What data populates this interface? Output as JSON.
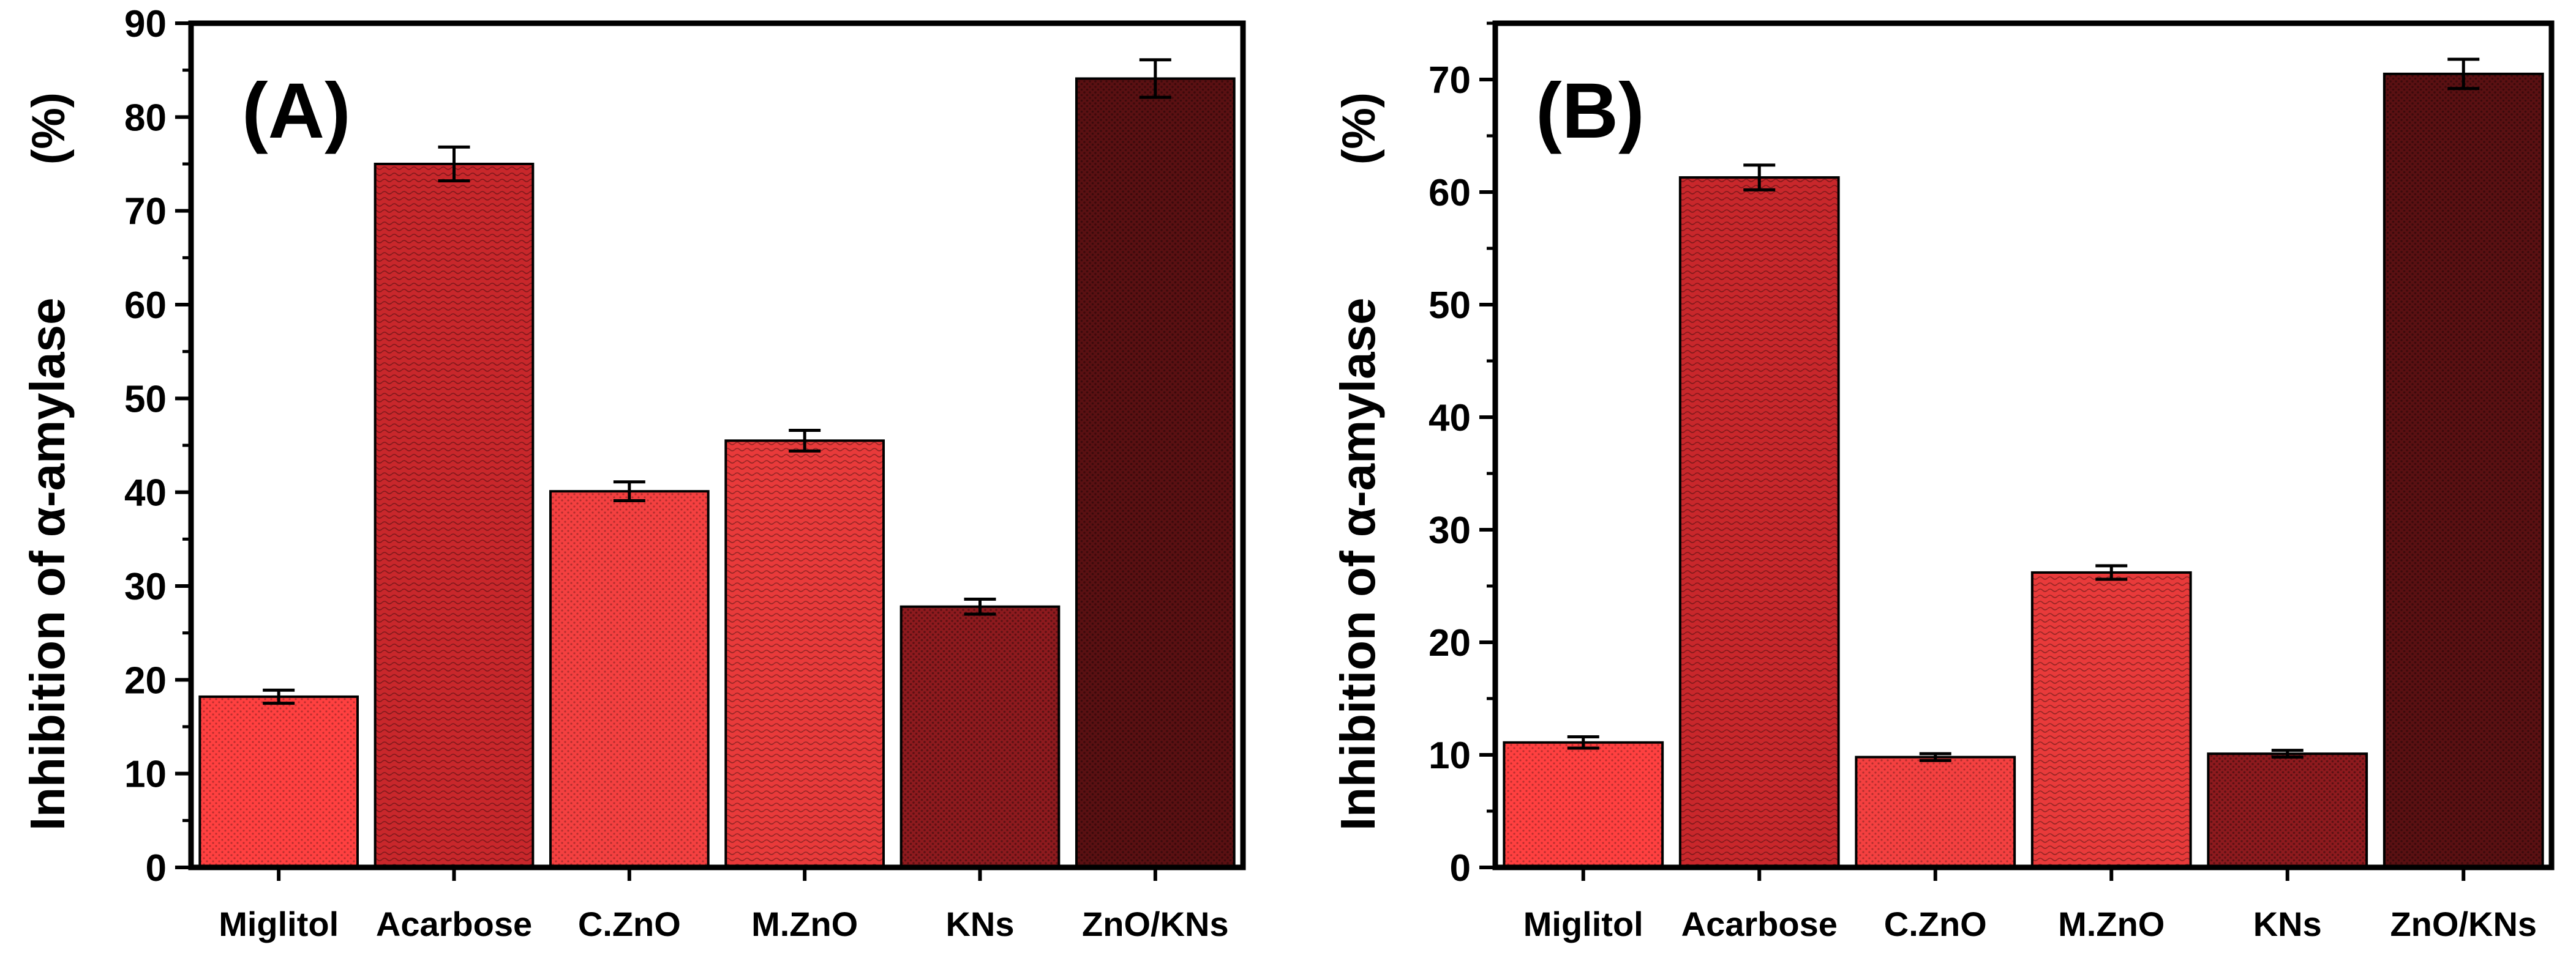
{
  "figure": {
    "description_free": true
  },
  "colors": {
    "frame": "#000000",
    "bar_outline": "#000000",
    "errorbar": "#000000"
  },
  "chart_data": [
    {
      "type": "bar",
      "panel_label": "(A)",
      "title": "",
      "xlabel": "",
      "ylabel": "Inhibition of α-amylase",
      "ylabel_unit": "(%)",
      "ylim": [
        0,
        90
      ],
      "yticks": [
        0,
        10,
        20,
        30,
        40,
        50,
        60,
        70,
        80,
        90
      ],
      "categories": [
        "Miglitol",
        "Acarbose",
        "C.ZnO",
        "M.ZnO",
        "KNs",
        "ZnO/KNs"
      ],
      "values": [
        18.2,
        75.0,
        40.1,
        45.5,
        27.8,
        84.1
      ],
      "errors": [
        0.7,
        1.8,
        1.0,
        1.1,
        0.8,
        2.0
      ],
      "bar_colors": [
        "#ff4040",
        "#c8272b",
        "#f44040",
        "#e83a3a",
        "#8e1a1e",
        "#5a1012"
      ]
    },
    {
      "type": "bar",
      "panel_label": "(B)",
      "title": "",
      "xlabel": "",
      "ylabel": "Inhibition of α-amylase",
      "ylabel_unit": "(%)",
      "ylim": [
        0,
        75
      ],
      "yticks": [
        0,
        10,
        20,
        30,
        40,
        50,
        60,
        70
      ],
      "categories": [
        "Miglitol",
        "Acarbose",
        "C.ZnO",
        "M.ZnO",
        "KNs",
        "ZnO/KNs"
      ],
      "values": [
        11.1,
        61.3,
        9.8,
        26.2,
        10.1,
        70.5
      ],
      "errors": [
        0.5,
        1.1,
        0.3,
        0.6,
        0.3,
        1.3
      ],
      "bar_colors": [
        "#ff4040",
        "#c8272b",
        "#f44040",
        "#e83a3a",
        "#8e1a1e",
        "#5a1012"
      ]
    }
  ]
}
